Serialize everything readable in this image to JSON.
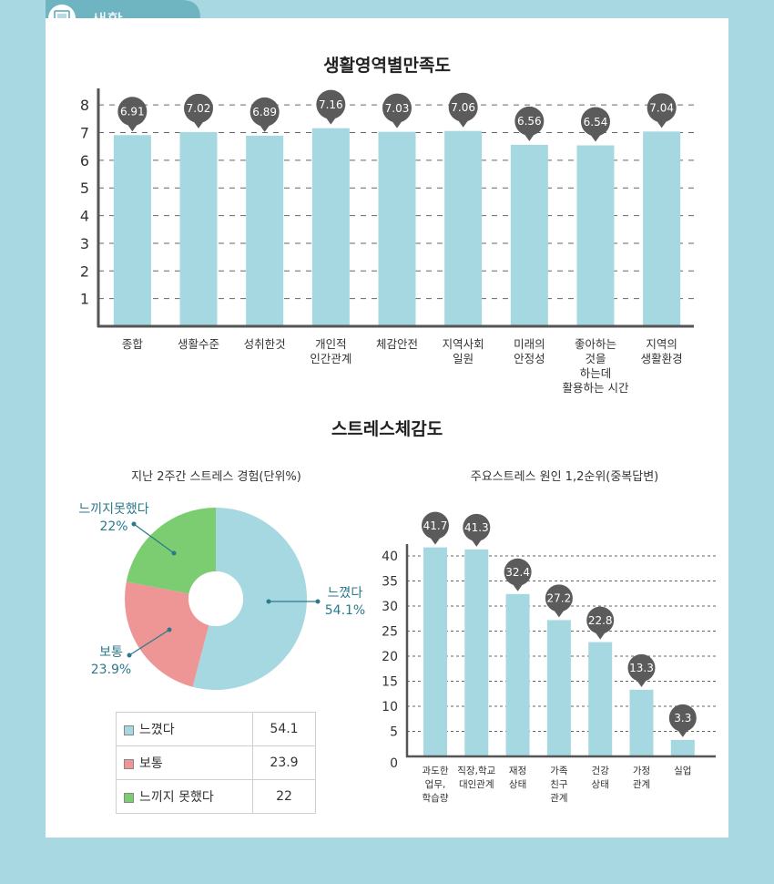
{
  "header": {
    "tab_label": "생활",
    "tab_icon": "monitor-icon",
    "tab_color": "#6fb4c1"
  },
  "colors": {
    "bar": "#a6d8e1",
    "callout": "#5b5b5b",
    "neutral": "#ee9595",
    "not_felt": "#7ccc72",
    "felt": "#a6d8e1",
    "accent": "#2a7a8c"
  },
  "section2_title": "스트레스체감도",
  "chart_data": [
    {
      "type": "bar",
      "title": "생활영역별만족도",
      "categories": [
        "종합",
        "생활수준",
        "성취한것",
        "개인적\n인간관계",
        "체감안전",
        "지역사회\n일원",
        "미래의\n안정성",
        "좋아하는\n것을\n하는데\n활용하는 시간",
        "지역의\n생활환경"
      ],
      "values": [
        6.91,
        7.02,
        6.89,
        7.16,
        7.03,
        7.06,
        6.56,
        6.54,
        7.04
      ],
      "value_labels": [
        "6.91",
        "7.02",
        "6.89",
        "7.16",
        "7.03",
        "7.06",
        "6.56",
        "6.54",
        "7.04"
      ],
      "ylim": [
        0,
        8
      ],
      "yticks": [
        "1",
        "2",
        "3",
        "4",
        "5",
        "6",
        "7",
        "8"
      ],
      "grid": true
    },
    {
      "type": "pie",
      "title": "지난 2주간 스트레스 경험(단위%)",
      "labels": [
        "느꼈다",
        "보통",
        "느끼지 못했다"
      ],
      "callout_labels": [
        "느꼈다",
        "보통",
        "느끼지못했다"
      ],
      "callout_values": [
        "54.1%",
        "23.9%",
        "22%"
      ],
      "values": [
        54.1,
        23.9,
        22
      ],
      "table_values": [
        "54.1",
        "23.9",
        "22"
      ],
      "colors": [
        "#a6d8e1",
        "#ee9595",
        "#7ccc72"
      ]
    },
    {
      "type": "bar",
      "title": "주요스트레스 원인 1,2순위(중복답변)",
      "categories": [
        "과도한\n업무,\n학습량",
        "직장,학교\n대인관계",
        "재정\n상태",
        "가족\n친구\n관계",
        "건강\n상태",
        "가정\n관계",
        "실업"
      ],
      "values": [
        41.7,
        41.3,
        32.4,
        27.2,
        22.8,
        13.3,
        3.3
      ],
      "value_labels": [
        "41.7",
        "41.3",
        "32.4",
        "27.2",
        "22.8",
        "13.3",
        "3.3"
      ],
      "ylim": [
        0,
        40
      ],
      "yticks": [
        "0",
        "5",
        "10",
        "15",
        "20",
        "25",
        "30",
        "35",
        "40"
      ],
      "grid": true
    }
  ]
}
